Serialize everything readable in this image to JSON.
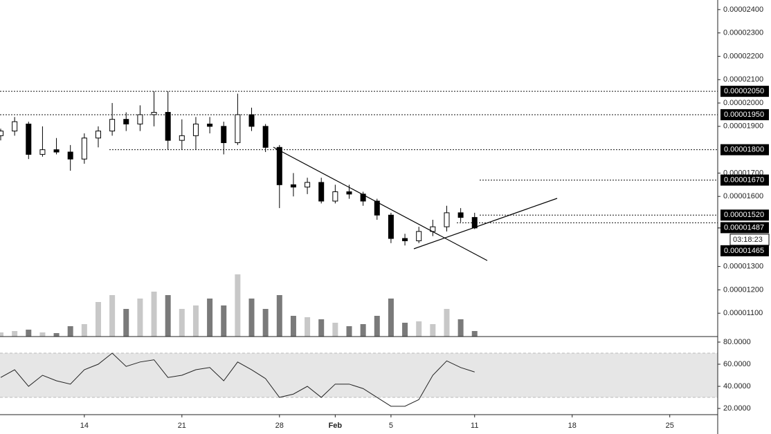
{
  "chart_data": {
    "type": "candlestick",
    "categories": [
      null,
      null,
      null,
      null,
      null,
      null,
      "14",
      null,
      null,
      null,
      null,
      null,
      null,
      "21",
      null,
      null,
      null,
      null,
      null,
      null,
      "28",
      null,
      null,
      null,
      "Feb",
      null,
      null,
      null,
      "5",
      null,
      null,
      null,
      null,
      null,
      "11",
      null,
      null,
      null,
      null,
      null,
      null,
      "18",
      null,
      null,
      null,
      null,
      null,
      null,
      "25",
      null,
      null,
      null
    ],
    "open": [
      1.86e-05,
      1.88e-05,
      1.91e-05,
      1.78e-05,
      1.8e-05,
      1.79e-05,
      1.76e-05,
      1.85e-05,
      1.88e-05,
      1.93e-05,
      1.91e-05,
      1.95e-05,
      1.96e-05,
      1.84e-05,
      1.86e-05,
      1.91e-05,
      1.9e-05,
      1.83e-05,
      1.95e-05,
      1.9e-05,
      1.81e-05,
      1.65e-05,
      1.64e-05,
      1.66e-05,
      1.58e-05,
      1.62e-05,
      1.61e-05,
      1.58e-05,
      1.52e-05,
      1.42e-05,
      1.41e-05,
      1.45e-05,
      1.47e-05,
      1.53e-05,
      1.51e-05,
      null,
      null,
      null,
      null,
      null,
      null,
      null,
      null,
      null,
      null,
      null,
      null,
      null,
      null,
      null,
      null,
      null
    ],
    "high": [
      1.89e-05,
      1.94e-05,
      1.92e-05,
      1.9e-05,
      1.85e-05,
      1.82e-05,
      1.87e-05,
      1.9e-05,
      2e-05,
      1.96e-05,
      1.99e-05,
      2.05e-05,
      2.05e-05,
      1.93e-05,
      1.94e-05,
      1.94e-05,
      1.92e-05,
      2.04e-05,
      1.98e-05,
      1.91e-05,
      1.82e-05,
      1.7e-05,
      1.68e-05,
      1.68e-05,
      1.65e-05,
      1.65e-05,
      1.62e-05,
      1.59e-05,
      1.53e-05,
      1.44e-05,
      1.47e-05,
      1.5e-05,
      1.56e-05,
      1.55e-05,
      1.53e-05,
      null,
      null,
      null,
      null,
      null,
      null,
      null,
      null,
      null,
      null,
      null,
      null,
      null,
      null,
      null,
      null,
      null
    ],
    "low": [
      1.84e-05,
      1.86e-05,
      1.76e-05,
      1.77e-05,
      1.78e-05,
      1.71e-05,
      1.74e-05,
      1.81e-05,
      1.86e-05,
      1.88e-05,
      1.88e-05,
      1.9e-05,
      1.8e-05,
      1.8e-05,
      1.8e-05,
      1.87e-05,
      1.78e-05,
      1.82e-05,
      1.88e-05,
      1.79e-05,
      1.55e-05,
      1.6e-05,
      1.61e-05,
      1.57e-05,
      1.57e-05,
      1.59e-05,
      1.56e-05,
      1.5e-05,
      1.4e-05,
      1.39e-05,
      1.4e-05,
      1.43e-05,
      1.45e-05,
      1.49e-05,
      1.46e-05,
      null,
      null,
      null,
      null,
      null,
      null,
      null,
      null,
      null,
      null,
      null,
      null,
      null,
      null,
      null,
      null,
      null
    ],
    "close": [
      1.88e-05,
      1.92e-05,
      1.78e-05,
      1.8e-05,
      1.79e-05,
      1.76e-05,
      1.85e-05,
      1.88e-05,
      1.93e-05,
      1.91e-05,
      1.95e-05,
      1.96e-05,
      1.84e-05,
      1.86e-05,
      1.91e-05,
      1.9e-05,
      1.83e-05,
      1.95e-05,
      1.9e-05,
      1.81e-05,
      1.65e-05,
      1.64e-05,
      1.66e-05,
      1.58e-05,
      1.62e-05,
      1.61e-05,
      1.58e-05,
      1.52e-05,
      1.42e-05,
      1.41e-05,
      1.45e-05,
      1.47e-05,
      1.53e-05,
      1.51e-05,
      1.465e-05,
      null,
      null,
      null,
      null,
      null,
      null,
      null,
      null,
      null,
      null,
      null,
      null,
      null,
      null,
      null,
      null,
      null
    ],
    "volume": [
      6,
      8,
      10,
      6,
      5,
      15,
      18,
      50,
      60,
      40,
      55,
      65,
      60,
      40,
      45,
      55,
      45,
      90,
      55,
      40,
      60,
      30,
      28,
      25,
      20,
      15,
      18,
      30,
      55,
      20,
      22,
      18,
      40,
      25,
      8,
      null,
      null,
      null,
      null,
      null,
      null,
      null,
      null,
      null,
      null,
      null,
      null,
      null,
      null,
      null,
      null,
      null
    ],
    "rsi": [
      48,
      55,
      40,
      50,
      45,
      42,
      55,
      60,
      70,
      58,
      62,
      64,
      48,
      50,
      55,
      57,
      45,
      62,
      55,
      47,
      30,
      33,
      40,
      30,
      42,
      42,
      38,
      30,
      22,
      22,
      28,
      50,
      63,
      57,
      53,
      null,
      null,
      null,
      null,
      null,
      null,
      null,
      null,
      null,
      null,
      null,
      null,
      null,
      null,
      null,
      null,
      null
    ],
    "ylim": [
      1e-05,
      2.441e-05
    ],
    "yticks": [
      {
        "value": 1.1e-05,
        "label": "0.00001100"
      },
      {
        "value": 1.2e-05,
        "label": "0.00001200"
      },
      {
        "value": 1.3e-05,
        "label": "0.00001300"
      },
      {
        "value": 1.6e-05,
        "label": "0.00001600"
      },
      {
        "value": 1.7e-05,
        "label": "0.00001700"
      },
      {
        "value": 1.9e-05,
        "label": "0.00001900"
      },
      {
        "value": 2e-05,
        "label": "0.00002000"
      },
      {
        "value": 2.1e-05,
        "label": "0.00002100"
      },
      {
        "value": 2.2e-05,
        "label": "0.00002200"
      },
      {
        "value": 2.3e-05,
        "label": "0.00002300"
      },
      {
        "value": 2.4e-05,
        "label": "0.00002400"
      }
    ],
    "levels": [
      {
        "value": 2.05e-05,
        "label": "0.00002050"
      },
      {
        "value": 1.95e-05,
        "label": "0.00001950"
      },
      {
        "value": 1.8e-05,
        "label": "0.00001800"
      },
      {
        "value": 1.67e-05,
        "label": "0.00001670"
      },
      {
        "value": 1.52e-05,
        "label": "0.00001520"
      },
      {
        "value": 1.487e-05,
        "label": "0.00001487"
      }
    ],
    "last_price": {
      "value": 1.465e-05,
      "label": "0.00001465"
    },
    "countdown": "03:18:23",
    "volume_ylim": [
      0,
      125
    ],
    "rsi_ylim": [
      14.4,
      85
    ],
    "rsi_yticks": [
      {
        "value": 80,
        "label": "80.0000"
      },
      {
        "value": 60,
        "label": "60.0000"
      },
      {
        "value": 40,
        "label": "40.0000"
      },
      {
        "value": 20,
        "label": "20.0000"
      }
    ],
    "rsi_band": [
      30,
      70
    ],
    "up_color": "#ffffff",
    "down_color": "#000000",
    "volume_up_color": "#c8c8c8",
    "volume_down_color": "#7a7a7a",
    "rsi_color": "#222222"
  }
}
